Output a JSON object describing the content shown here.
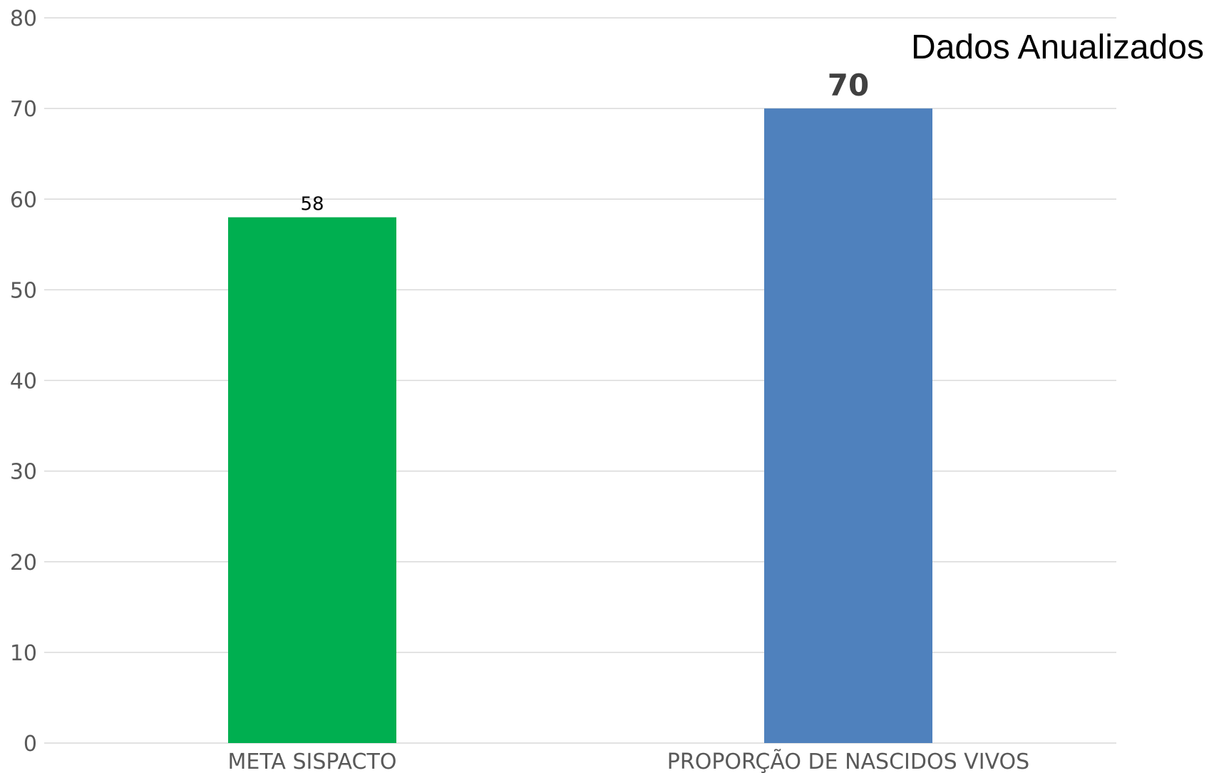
{
  "chart_data": {
    "type": "bar",
    "title": "Dados Anualizados",
    "categories": [
      "META SISPACTO",
      "PROPORÇÃO DE NASCIDOS VIVOS"
    ],
    "values": [
      58,
      70
    ],
    "colors": [
      "#00AF50",
      "#4F81BD"
    ],
    "data_labels": [
      "58",
      "70"
    ],
    "data_label_styles": [
      "normal",
      "bold"
    ],
    "ylim": [
      0,
      80
    ],
    "yticks": [
      0,
      10,
      20,
      30,
      40,
      50,
      60,
      70,
      80
    ],
    "ytick_labels": [
      "0",
      "10",
      "20",
      "30",
      "40",
      "50",
      "60",
      "70",
      "80"
    ],
    "grid": true,
    "legend": "none",
    "xlabel": "",
    "ylabel": ""
  }
}
